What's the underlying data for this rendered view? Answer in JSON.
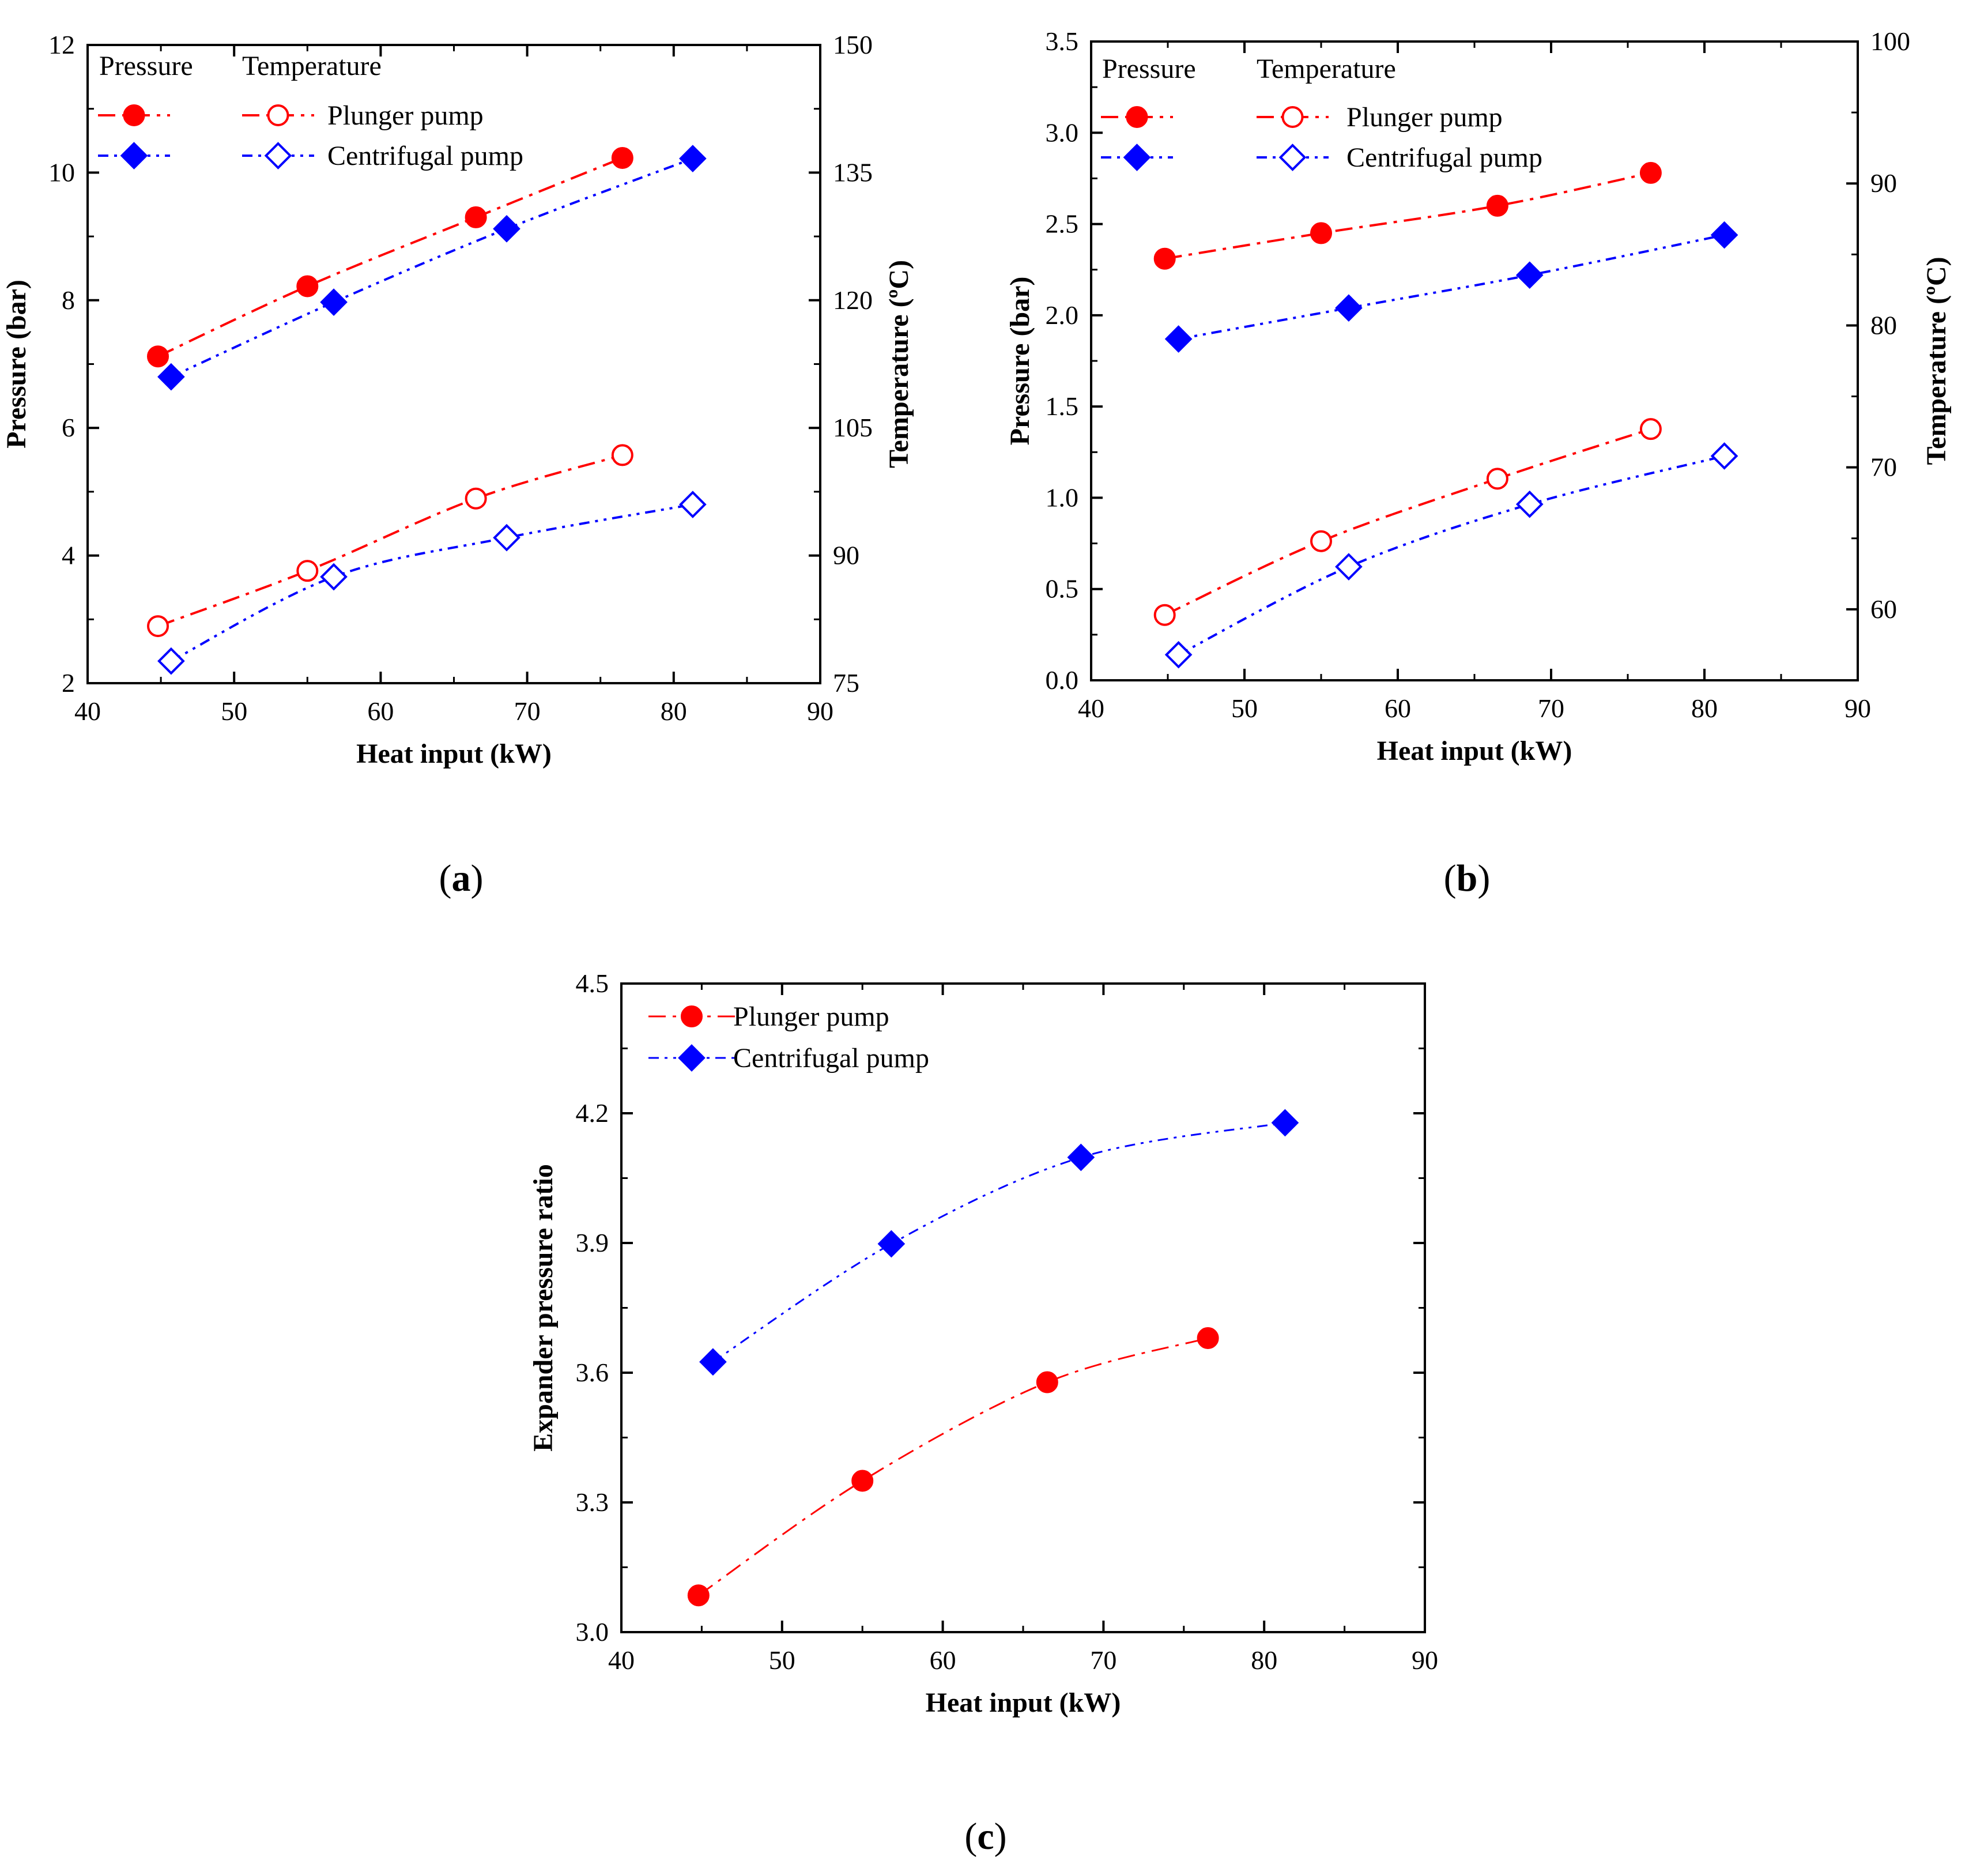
{
  "colors": {
    "plunger": "#ff0000",
    "centrifugal": "#0000ff",
    "axis": "#000000"
  },
  "chart_data": [
    {
      "type": "line",
      "panel": "(a)",
      "panel_letter": "a",
      "xlabel": "Heat input (kW)",
      "ylabel": "Pressure (bar)",
      "y2label": "Temperature (ºC)",
      "xlim": [
        40,
        90
      ],
      "xticks": [
        40,
        50,
        60,
        70,
        80,
        90
      ],
      "ylim": [
        2,
        12
      ],
      "yticks": [
        2,
        4,
        6,
        8,
        10,
        12
      ],
      "y2lim": [
        75,
        150
      ],
      "y2ticks": [
        75,
        90,
        105,
        120,
        135,
        150
      ],
      "legend_headers": [
        "Pressure",
        "Temperature"
      ],
      "legend_pump_labels": [
        "Plunger pump",
        "Centrifugal pump"
      ],
      "series": [
        {
          "name": "Plunger pump pressure",
          "pump": "plunger",
          "quantity": "Pressure",
          "axis": "left",
          "marker": "circle",
          "filled": true,
          "x": [
            44.8,
            55.0,
            66.5,
            76.5
          ],
          "values": [
            7.12,
            8.22,
            9.3,
            10.23
          ]
        },
        {
          "name": "Centrifugal pump pressure",
          "pump": "centrifugal",
          "quantity": "Pressure",
          "axis": "left",
          "marker": "diamond",
          "filled": true,
          "x": [
            45.7,
            56.8,
            68.6,
            81.3
          ],
          "values": [
            6.8,
            7.97,
            9.12,
            10.22
          ]
        },
        {
          "name": "Plunger pump temperature",
          "pump": "plunger",
          "quantity": "Temperature",
          "axis": "right",
          "marker": "circle",
          "filled": false,
          "x": [
            44.8,
            55.0,
            66.5,
            76.5
          ],
          "values": [
            81.7,
            88.2,
            96.7,
            101.8
          ]
        },
        {
          "name": "Centrifugal pump temperature",
          "pump": "centrifugal",
          "quantity": "Temperature",
          "axis": "right",
          "marker": "diamond",
          "filled": false,
          "x": [
            45.7,
            56.8,
            68.6,
            81.3
          ],
          "values": [
            77.6,
            87.5,
            92.1,
            96.0
          ]
        }
      ]
    },
    {
      "type": "line",
      "panel": "(b)",
      "panel_letter": "b",
      "xlabel": "Heat input (kW)",
      "ylabel": "Pressure (bar)",
      "y2label": "Temperature (ºC)",
      "xlim": [
        40,
        90
      ],
      "xticks": [
        40,
        50,
        60,
        70,
        80,
        90
      ],
      "ylim": [
        0.0,
        3.5
      ],
      "yticks": [
        "0.0",
        "0.5",
        "1.0",
        "1.5",
        "2.0",
        "2.5",
        "3.0",
        "3.5"
      ],
      "y2lim": [
        55,
        100
      ],
      "y2ticks": [
        60,
        70,
        80,
        90,
        100
      ],
      "legend_headers": [
        "Pressure",
        "Temperature"
      ],
      "legend_pump_labels": [
        "Plunger pump",
        "Centrifugal pump"
      ],
      "series": [
        {
          "name": "Plunger pump pressure",
          "pump": "plunger",
          "quantity": "Pressure",
          "axis": "left",
          "marker": "circle",
          "filled": true,
          "x": [
            44.8,
            55.0,
            66.5,
            76.5
          ],
          "values": [
            2.31,
            2.45,
            2.6,
            2.78
          ]
        },
        {
          "name": "Centrifugal pump pressure",
          "pump": "centrifugal",
          "quantity": "Pressure",
          "axis": "left",
          "marker": "diamond",
          "filled": true,
          "x": [
            45.7,
            56.8,
            68.6,
            81.3
          ],
          "values": [
            1.87,
            2.04,
            2.22,
            2.44
          ]
        },
        {
          "name": "Plunger pump temperature",
          "pump": "plunger",
          "quantity": "Temperature",
          "axis": "right",
          "marker": "circle",
          "filled": false,
          "x": [
            44.8,
            55.0,
            66.5,
            76.5
          ],
          "values": [
            59.6,
            64.8,
            69.2,
            72.7
          ]
        },
        {
          "name": "Centrifugal pump temperature",
          "pump": "centrifugal",
          "quantity": "Temperature",
          "axis": "right",
          "marker": "diamond",
          "filled": false,
          "x": [
            45.7,
            56.8,
            68.6,
            81.3
          ],
          "values": [
            56.8,
            63.0,
            67.4,
            70.8
          ]
        }
      ]
    },
    {
      "type": "line",
      "panel": "(c)",
      "panel_letter": "c",
      "xlabel": "Heat input (kW)",
      "ylabel": "Expander pressure ratio",
      "xlim": [
        40,
        90
      ],
      "xticks": [
        40,
        50,
        60,
        70,
        80,
        90
      ],
      "ylim": [
        3.0,
        4.5
      ],
      "yticks": [
        "3.0",
        "3.3",
        "3.6",
        "3.9",
        "4.2",
        "4.5"
      ],
      "legend_labels": [
        "Plunger pump",
        "Centrifugal pump"
      ],
      "series": [
        {
          "name": "Plunger pump",
          "pump": "plunger",
          "axis": "left",
          "marker": "circle",
          "filled": true,
          "x": [
            44.8,
            55.0,
            66.5,
            76.5
          ],
          "values": [
            3.085,
            3.35,
            3.578,
            3.68
          ]
        },
        {
          "name": "Centrifugal pump",
          "pump": "centrifugal",
          "axis": "left",
          "marker": "diamond",
          "filled": true,
          "x": [
            45.7,
            56.8,
            68.6,
            81.3
          ],
          "values": [
            3.625,
            3.898,
            4.098,
            4.178
          ]
        }
      ]
    }
  ]
}
